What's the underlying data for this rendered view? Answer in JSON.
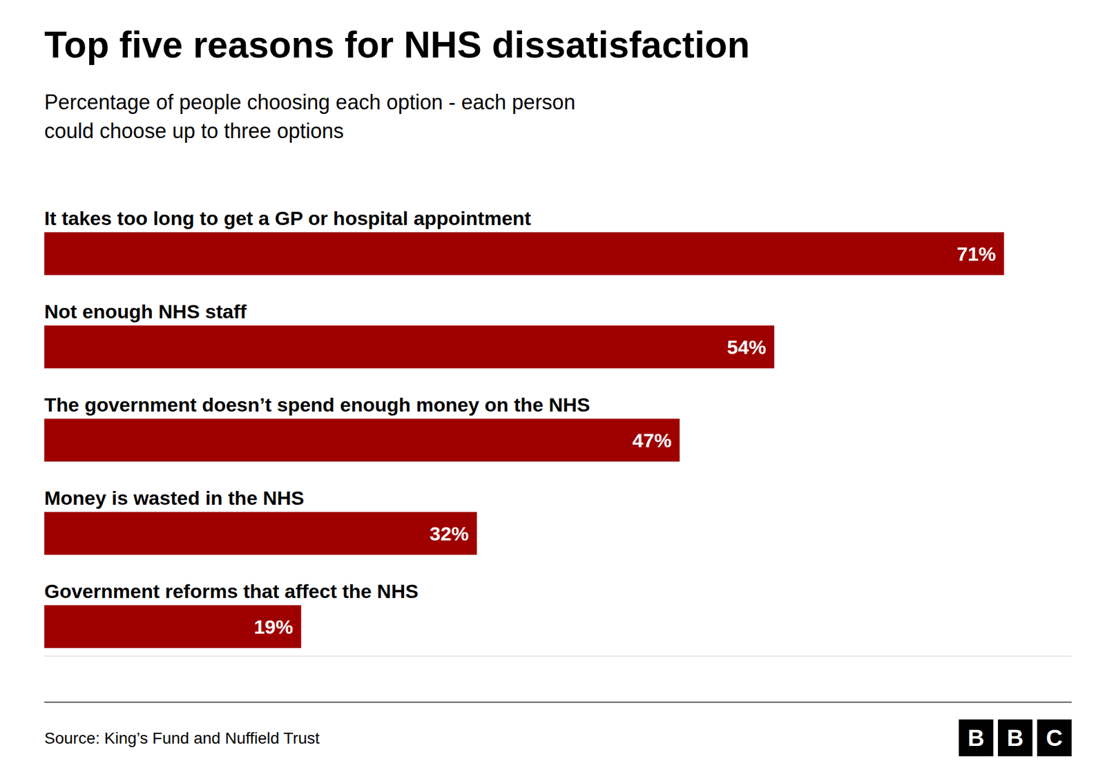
{
  "chart_data": {
    "type": "bar",
    "orientation": "horizontal",
    "title": "Top five reasons for NHS dissatisfaction",
    "subtitle": "Percentage of people choosing each option - each person\ncould choose up to three options",
    "categories": [
      "It takes too long to get a GP or hospital appointment",
      "Not enough NHS staff",
      "The government doesn’t spend enough money on the NHS",
      "Money is wasted in the NHS",
      "Government reforms that affect the NHS"
    ],
    "values": [
      71,
      54,
      47,
      32,
      19
    ],
    "value_labels": [
      "71%",
      "54%",
      "47%",
      "32%",
      "19%"
    ],
    "data_labels": true,
    "color": "#9e0000",
    "xlim": [
      0,
      76
    ],
    "tick_labels": false,
    "grid": false,
    "source": "Source: King’s Fund and Nuffield Trust",
    "logo": [
      "B",
      "B",
      "C"
    ]
  }
}
